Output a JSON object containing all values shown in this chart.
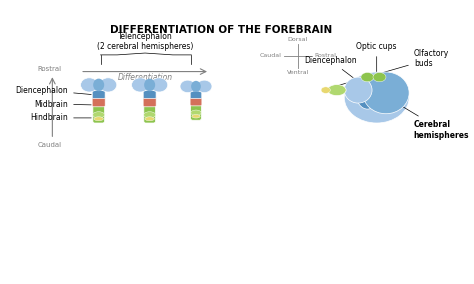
{
  "title": "DIFFERENTIATION OF THE FOREBRAIN",
  "title_fontsize": 7.5,
  "title_fontweight": "bold",
  "bg_color": "#f5f5f5",
  "blue_color": "#7aaed6",
  "blue_light": "#a8c8e8",
  "blue_dark": "#5590c0",
  "green_color": "#8dc44e",
  "green_light": "#b0d870",
  "red_color": "#d4705a",
  "yellow_color": "#e8d870",
  "labels_left": [
    "Diencephalon",
    "Midbrain",
    "Hindbrain"
  ],
  "labels_right": [
    "Cerebral\nhemispheres",
    "Diencephalon",
    "Optic cups",
    "Olfactory\nbuds"
  ],
  "label_fontsize": 5.5,
  "axis_label_fontsize": 5.0,
  "diff_label": "Differentiation",
  "rostral_label": "Rostral",
  "caudal_label": "Caudal",
  "telencephalon_label": "Telencephalon\n(2 cerebral hemispheres)",
  "dorsal_label": "Dorsal",
  "ventral_label": "Ventral"
}
